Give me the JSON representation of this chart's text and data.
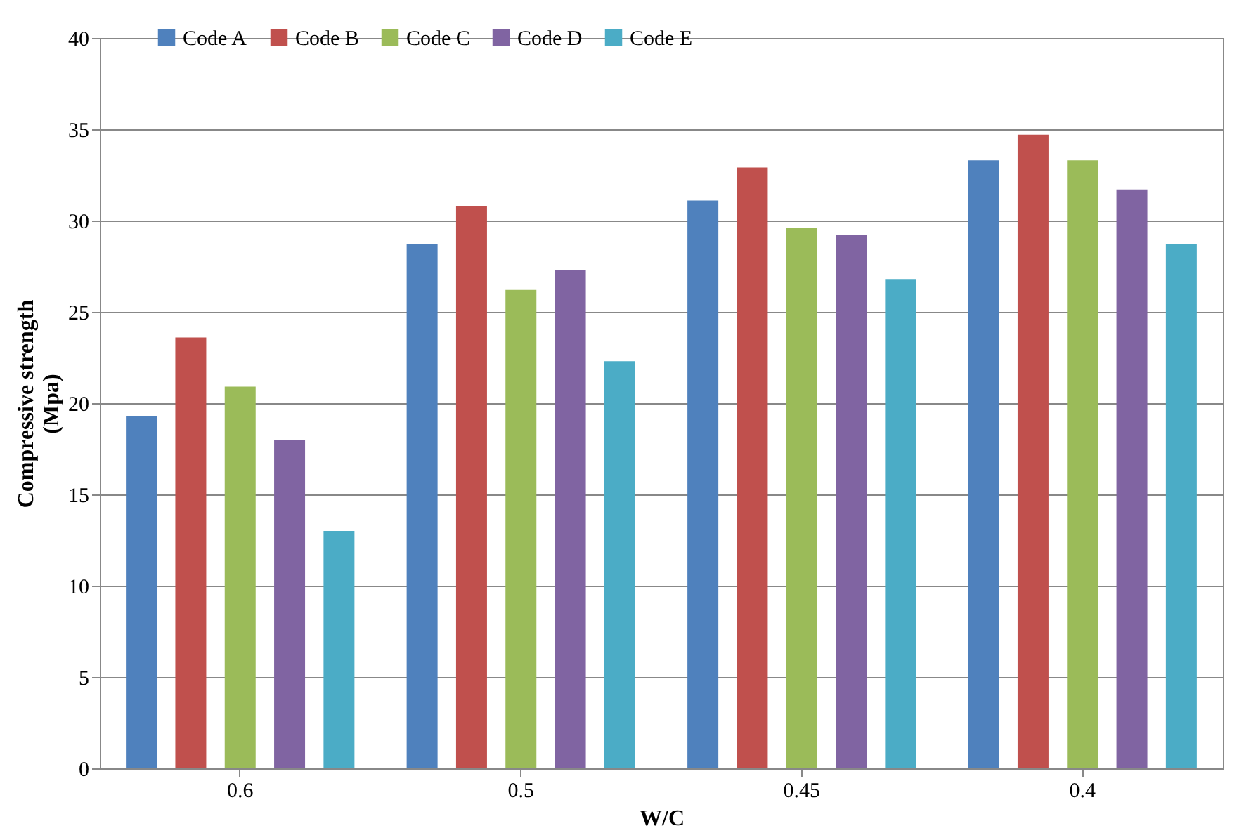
{
  "chart_data": {
    "type": "bar",
    "xlabel": "W/C",
    "ylabel": "Compressive strength\n(Mpa)",
    "categories": [
      "0.6",
      "0.5",
      "0.45",
      "0.4"
    ],
    "series": [
      {
        "name": "Code A",
        "color": "#4f81bd",
        "values": [
          19.3,
          28.7,
          31.1,
          33.3
        ]
      },
      {
        "name": "Code B",
        "color": "#c0504d",
        "values": [
          23.6,
          30.8,
          32.9,
          34.7
        ]
      },
      {
        "name": "Code C",
        "color": "#9bbb59",
        "values": [
          20.9,
          26.2,
          29.6,
          33.3
        ]
      },
      {
        "name": "Code D",
        "color": "#8064a2",
        "values": [
          18.0,
          27.3,
          29.2,
          31.7
        ]
      },
      {
        "name": "Code E",
        "color": "#4bacc6",
        "values": [
          13.0,
          22.3,
          26.8,
          28.7
        ]
      }
    ],
    "ylim": [
      0,
      40
    ],
    "yticks": [
      0,
      5,
      10,
      15,
      20,
      25,
      30,
      35,
      40
    ],
    "grid": "y",
    "legend": "top"
  }
}
